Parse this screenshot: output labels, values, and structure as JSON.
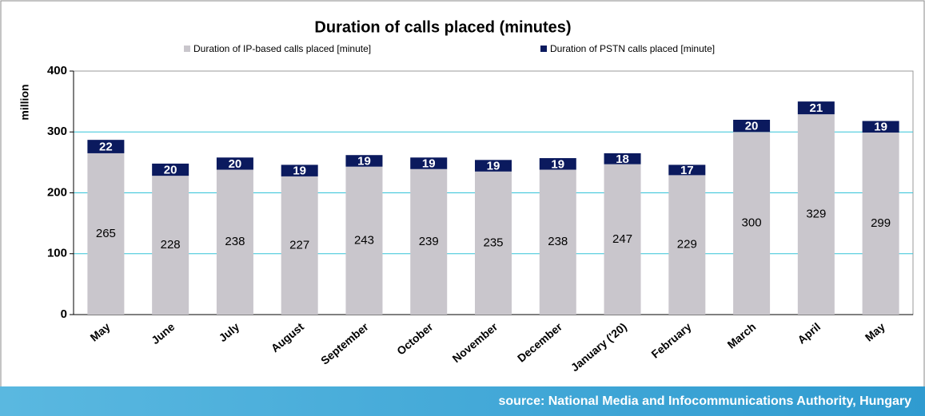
{
  "chart_data": {
    "type": "stacked_bar",
    "title": "Duration of calls placed (minutes)",
    "y_label": "million",
    "categories": [
      "May",
      "June",
      "July",
      "August",
      "September",
      "October",
      "November",
      "December",
      "January ('20)",
      "February",
      "March",
      "April",
      "May"
    ],
    "series": [
      {
        "name": "Duration of IP-based calls placed [minute]",
        "color": "#c9c6cc",
        "values": [
          265,
          228,
          238,
          227,
          243,
          239,
          235,
          238,
          247,
          229,
          300,
          329,
          299
        ]
      },
      {
        "name": "Duration of PSTN calls placed [minute]",
        "color": "#0b1a5e",
        "values": [
          22,
          20,
          20,
          19,
          19,
          19,
          19,
          19,
          18,
          17,
          20,
          21,
          19
        ]
      }
    ],
    "ylim": [
      0,
      400
    ],
    "yticks": [
      0,
      100,
      200,
      300,
      400
    ],
    "grid": true,
    "legend": "top",
    "source": "source: National Media and Infocommunications Authority, Hungary"
  }
}
